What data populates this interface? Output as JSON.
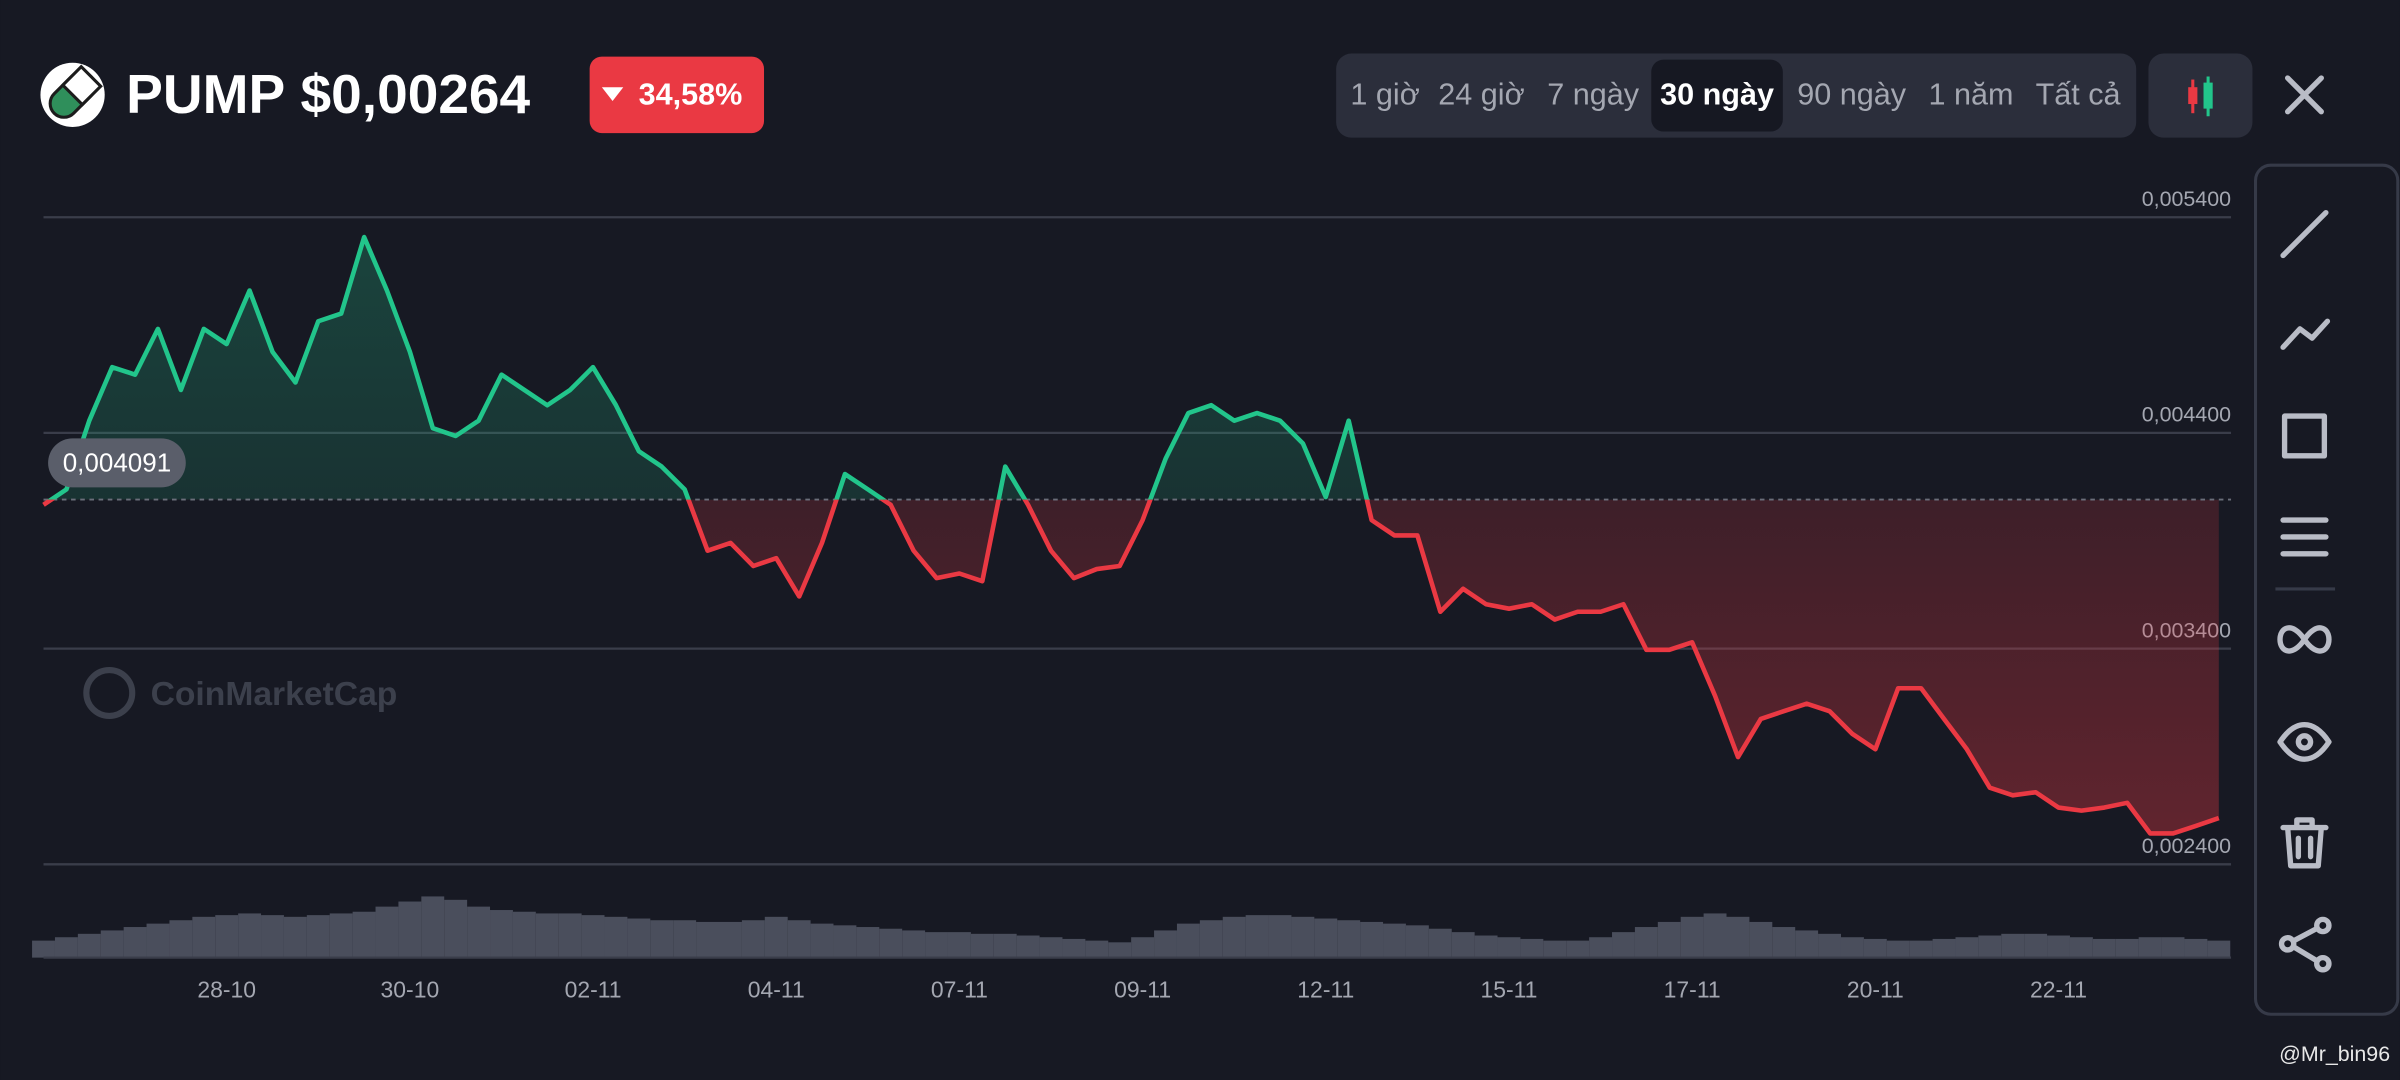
{
  "header": {
    "symbol": "PUMP",
    "price": "$0,00264",
    "change": "34,58%",
    "timeframes": [
      "1 giờ",
      "24 giờ",
      "7 ngày",
      "30 ngày",
      "90 ngày",
      "1 năm",
      "Tất cả"
    ],
    "selected_timeframe": 3
  },
  "watermark": "CoinMarketCap",
  "credit": "@Mr_bin96",
  "chart_data": {
    "type": "line",
    "categories": [
      null,
      null,
      null,
      null,
      null,
      null,
      null,
      null,
      "28-10",
      null,
      null,
      null,
      null,
      null,
      null,
      null,
      "30-10",
      null,
      null,
      null,
      null,
      null,
      null,
      null,
      "02-11",
      null,
      null,
      null,
      null,
      null,
      null,
      null,
      "04-11",
      null,
      null,
      null,
      null,
      null,
      null,
      null,
      "07-11",
      null,
      null,
      null,
      null,
      null,
      null,
      null,
      "09-11",
      null,
      null,
      null,
      null,
      null,
      null,
      null,
      "12-11",
      null,
      null,
      null,
      null,
      null,
      null,
      null,
      "15-11",
      null,
      null,
      null,
      null,
      null,
      null,
      null,
      "17-11",
      null,
      null,
      null,
      null,
      null,
      null,
      null,
      "20-11",
      null,
      null,
      null,
      null,
      null,
      null,
      null,
      "22-11",
      null,
      null,
      null,
      null,
      null,
      null,
      null
    ],
    "values": [
      0.004067,
      0.004138,
      0.004457,
      0.004705,
      0.00467,
      0.004882,
      0.004599,
      0.004882,
      0.004812,
      0.00506,
      0.004776,
      0.004634,
      0.004918,
      0.004953,
      0.005308,
      0.00506,
      0.004776,
      0.004422,
      0.004386,
      0.004457,
      0.00467,
      0.004599,
      0.004528,
      0.004599,
      0.004705,
      0.004528,
      0.004315,
      0.004244,
      0.004138,
      0.003854,
      0.00389,
      0.003783,
      0.003819,
      0.003642,
      0.00389,
      0.004209,
      0.004138,
      0.004067,
      0.003854,
      0.003727,
      0.003748,
      0.003713,
      0.004244,
      0.004067,
      0.003854,
      0.003727,
      0.003769,
      0.003783,
      0.003996,
      0.00428,
      0.004492,
      0.004528,
      0.004457,
      0.004492,
      0.004457,
      0.004351,
      0.004103,
      0.004457,
      0.003996,
      0.003925,
      0.003925,
      0.003571,
      0.003677,
      0.003606,
      0.003585,
      0.003606,
      0.003535,
      0.003571,
      0.003571,
      0.003606,
      0.003394,
      0.003394,
      0.003429,
      0.003181,
      0.002897,
      0.003074,
      0.00311,
      0.003145,
      0.00311,
      0.003004,
      0.002933,
      0.003216,
      0.003216,
      0.003074,
      0.002933,
      0.002755,
      0.00272,
      0.002734,
      0.002663,
      0.002649,
      0.002663,
      0.002685,
      0.002543,
      0.002543,
      0.002578,
      0.002614
    ],
    "volume": [
      10,
      12,
      14,
      16,
      18,
      20,
      22,
      24,
      25,
      26,
      25,
      24,
      25,
      26,
      27,
      30,
      33,
      36,
      34,
      30,
      28,
      27,
      26,
      26,
      25,
      24,
      23,
      22,
      22,
      21,
      21,
      22,
      24,
      22,
      20,
      19,
      18,
      17,
      16,
      15,
      15,
      14,
      14,
      13,
      12,
      11,
      10,
      9,
      12,
      16,
      20,
      22,
      24,
      25,
      25,
      24,
      23,
      22,
      21,
      20,
      19,
      17,
      15,
      13,
      12,
      11,
      10,
      10,
      12,
      15,
      18,
      21,
      24,
      26,
      24,
      21,
      18,
      16,
      14,
      12,
      11,
      10,
      10,
      11,
      12,
      13,
      14,
      14,
      13,
      12,
      11,
      11,
      12,
      12,
      11,
      10
    ],
    "baseline": {
      "value": 0.004091,
      "label": "0,004091"
    },
    "up_color": "#22c58b",
    "down_color": "#ea3943",
    "volume_color": "#4a4e5c",
    "ylim": [
      0.0024,
      0.005556
    ],
    "yticks": [
      {
        "value": 0.0024,
        "label": "0,002400"
      },
      {
        "value": 0.0034,
        "label": "0,003400"
      },
      {
        "value": 0.0044,
        "label": "0,004400"
      },
      {
        "value": 0.0054,
        "label": "0,005400"
      }
    ],
    "grid": true
  }
}
